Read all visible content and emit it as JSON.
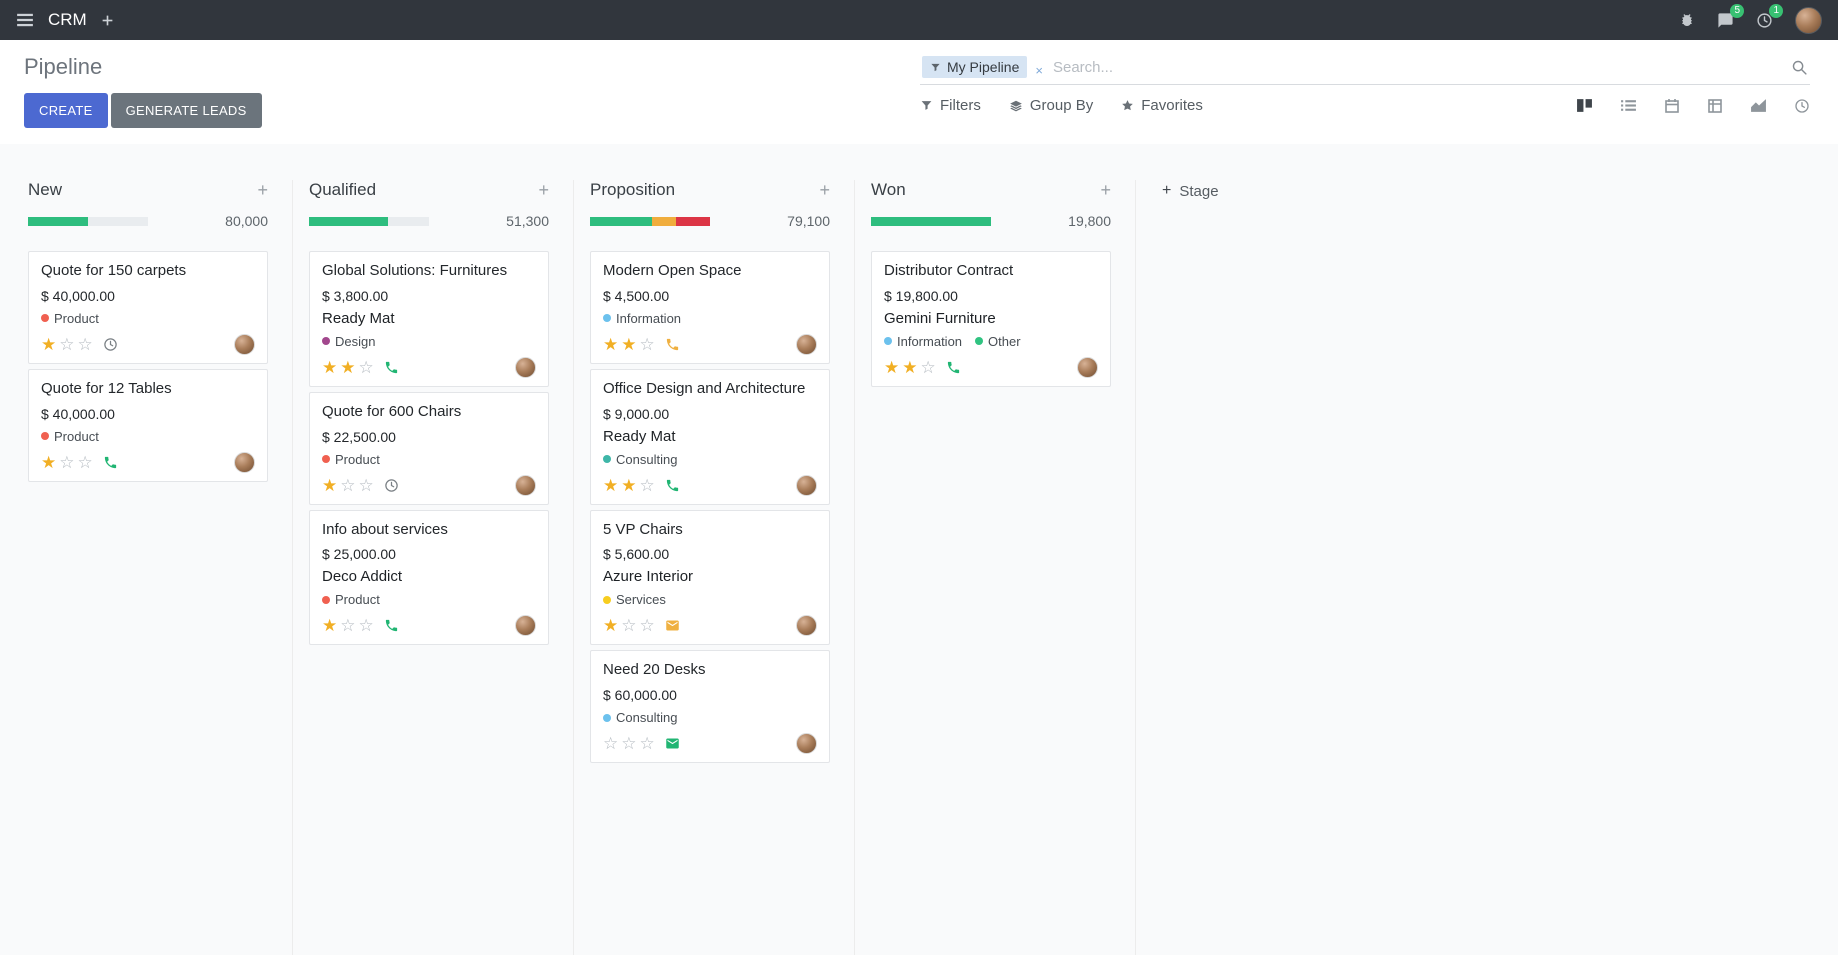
{
  "colors": {
    "navbar-bg": "#31363d",
    "primary": "#4c69d1",
    "secondary": "#6b747c",
    "badge": "#38c172",
    "star": "#f1af24",
    "board-bg": "#f9fafb"
  },
  "navbar": {
    "app_name": "CRM",
    "messages_badge": "5",
    "activities_badge": "1"
  },
  "control_panel": {
    "title": "Pipeline",
    "create_label": "CREATE",
    "generate_leads_label": "GENERATE LEADS",
    "search": {
      "facet_label": "My Pipeline",
      "facet_remove": "×",
      "placeholder": "Search..."
    },
    "filters_label": "Filters",
    "group_by_label": "Group By",
    "favorites_label": "Favorites",
    "views": [
      "kanban",
      "list",
      "calendar",
      "pivot",
      "graph",
      "activity"
    ],
    "active_view": "kanban"
  },
  "board": {
    "add_stage_label": "Stage",
    "columns": [
      {
        "title": "New",
        "total": "80,000",
        "progress": [
          {
            "color": "#2ebd7e",
            "width": "50%"
          }
        ],
        "cards": [
          {
            "title": "Quote for 150 carpets",
            "amount": "$ 40,000.00",
            "tags": [
              {
                "label": "Product",
                "color": "#f06050"
              }
            ],
            "stars": 1,
            "activity": {
              "icon": "clock-icon",
              "color": "#7a8085"
            }
          },
          {
            "title": "Quote for 12 Tables",
            "amount": "$ 40,000.00",
            "tags": [
              {
                "label": "Product",
                "color": "#f06050"
              }
            ],
            "stars": 1,
            "activity": {
              "icon": "phone-icon",
              "color": "#21b573"
            }
          }
        ]
      },
      {
        "title": "Qualified",
        "total": "51,300",
        "progress": [
          {
            "color": "#2ebd7e",
            "width": "66%"
          }
        ],
        "cards": [
          {
            "title": "Global Solutions: Furnitures",
            "amount": "$ 3,800.00",
            "partner": "Ready Mat",
            "tags": [
              {
                "label": "Design",
                "color": "#a2478d"
              }
            ],
            "stars": 2,
            "activity": {
              "icon": "phone-icon",
              "color": "#21b573"
            }
          },
          {
            "title": "Quote for 600 Chairs",
            "amount": "$ 22,500.00",
            "tags": [
              {
                "label": "Product",
                "color": "#f06050"
              }
            ],
            "stars": 1,
            "activity": {
              "icon": "clock-icon",
              "color": "#7a8085"
            }
          },
          {
            "title": "Info about services",
            "amount": "$ 25,000.00",
            "partner": "Deco Addict",
            "tags": [
              {
                "label": "Product",
                "color": "#f06050"
              }
            ],
            "stars": 1,
            "activity": {
              "icon": "phone-icon",
              "color": "#21b573"
            }
          }
        ]
      },
      {
        "title": "Proposition",
        "total": "79,100",
        "progress": [
          {
            "color": "#2ebd7e",
            "width": "52%"
          },
          {
            "color": "#f0ad3d",
            "width": "20%"
          },
          {
            "color": "#dc3545",
            "width": "28%"
          }
        ],
        "cards": [
          {
            "title": "Modern Open Space",
            "amount": "$ 4,500.00",
            "tags": [
              {
                "label": "Information",
                "color": "#6cc1ed"
              }
            ],
            "stars": 2,
            "activity": {
              "icon": "phone-icon",
              "color": "#efb041"
            }
          },
          {
            "title": "Office Design and Architecture",
            "amount": "$ 9,000.00",
            "partner": "Ready Mat",
            "tags": [
              {
                "label": "Consulting",
                "color": "#3eb6a8"
              }
            ],
            "stars": 2,
            "activity": {
              "icon": "phone-icon",
              "color": "#21b573"
            }
          },
          {
            "title": "5 VP Chairs",
            "amount": "$ 5,600.00",
            "partner": "Azure Interior",
            "tags": [
              {
                "label": "Services",
                "color": "#f7cd1f"
              }
            ],
            "stars": 1,
            "activity": {
              "icon": "envelope-icon",
              "color": "#efb041"
            }
          },
          {
            "title": "Need 20 Desks",
            "amount": "$ 60,000.00",
            "tags": [
              {
                "label": "Consulting",
                "color": "#6cc1ed"
              }
            ],
            "stars": 0,
            "activity": {
              "icon": "envelope-icon",
              "color": "#21b573"
            }
          }
        ]
      },
      {
        "title": "Won",
        "total": "19,800",
        "progress": [
          {
            "color": "#2ebd7e",
            "width": "100%"
          }
        ],
        "cards": [
          {
            "title": "Distributor Contract",
            "amount": "$ 19,800.00",
            "partner": "Gemini Furniture",
            "tags": [
              {
                "label": "Information",
                "color": "#6cc1ed"
              },
              {
                "label": "Other",
                "color": "#30c381"
              }
            ],
            "stars": 2,
            "activity": {
              "icon": "phone-icon",
              "color": "#21b573"
            }
          }
        ]
      }
    ]
  }
}
